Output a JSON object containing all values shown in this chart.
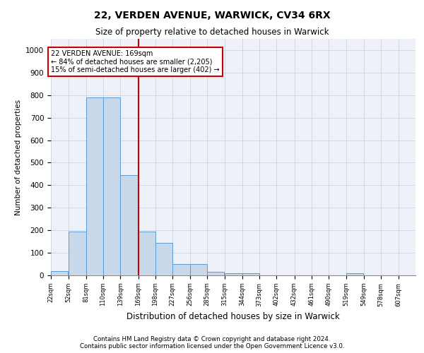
{
  "title_line1": "22, VERDEN AVENUE, WARWICK, CV34 6RX",
  "title_line2": "Size of property relative to detached houses in Warwick",
  "xlabel": "Distribution of detached houses by size in Warwick",
  "ylabel": "Number of detached properties",
  "footnote1": "Contains HM Land Registry data © Crown copyright and database right 2024.",
  "footnote2": "Contains public sector information licensed under the Open Government Licence v3.0.",
  "bins": [
    22,
    52,
    81,
    110,
    139,
    169,
    198,
    227,
    256,
    285,
    315,
    344,
    373,
    402,
    432,
    461,
    490,
    519,
    549,
    578,
    607
  ],
  "values": [
    20,
    195,
    790,
    790,
    445,
    195,
    145,
    50,
    50,
    15,
    10,
    10,
    0,
    0,
    0,
    0,
    0,
    10,
    0,
    0,
    0
  ],
  "bar_color": "#c8d8e8",
  "bar_edge_color": "#5b9bd5",
  "vline_x": 169,
  "vline_color": "#cc0000",
  "annotation_text": "22 VERDEN AVENUE: 169sqm\n← 84% of detached houses are smaller (2,205)\n15% of semi-detached houses are larger (402) →",
  "annotation_box_color": "#cc0000",
  "ylim": [
    0,
    1050
  ],
  "yticks": [
    0,
    100,
    200,
    300,
    400,
    500,
    600,
    700,
    800,
    900,
    1000
  ],
  "grid_color": "#d0d8e8",
  "background_color": "#eef2f8",
  "bin_width": 29
}
